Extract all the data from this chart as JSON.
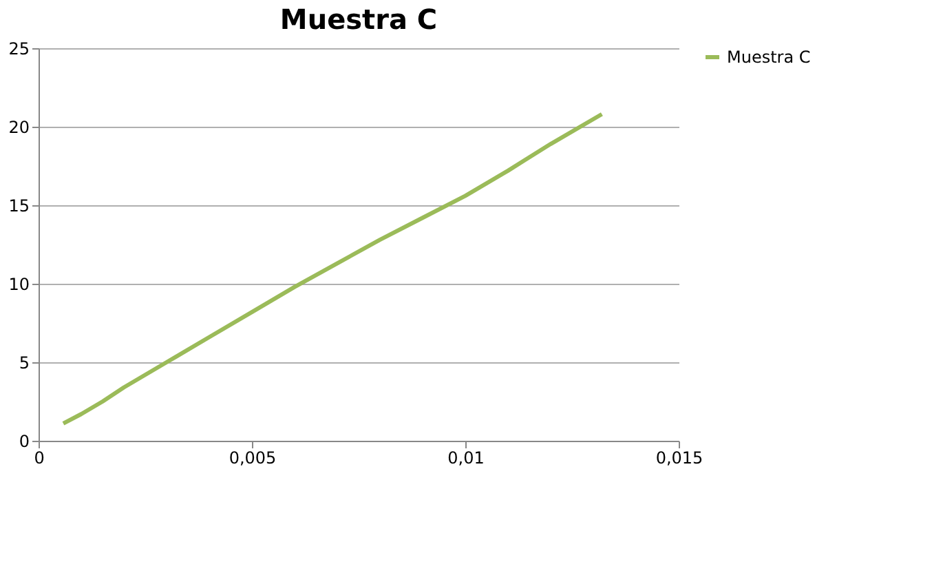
{
  "chart_data": {
    "type": "line",
    "title": "Muestra C",
    "x": [
      0.00058,
      0.001,
      0.0015,
      0.002,
      0.0025,
      0.003,
      0.004,
      0.005,
      0.006,
      0.007,
      0.008,
      0.009,
      0.01,
      0.011,
      0.012,
      0.0132
    ],
    "series": [
      {
        "name": "Muestra C",
        "color": "#9bbb59",
        "values": [
          1.1,
          1.7,
          2.5,
          3.4,
          4.2,
          5.0,
          6.6,
          8.2,
          9.8,
          11.3,
          12.8,
          14.2,
          15.6,
          17.2,
          18.9,
          20.8
        ]
      }
    ],
    "xlim": [
      0,
      0.015
    ],
    "xticks": [
      {
        "value": 0,
        "label": "0"
      },
      {
        "value": 0.005,
        "label": "0,005"
      },
      {
        "value": 0.01,
        "label": "0,01"
      },
      {
        "value": 0.015,
        "label": "0,015"
      }
    ],
    "ylim": [
      0,
      25
    ],
    "yticks": [
      0,
      5,
      10,
      15,
      20,
      25
    ],
    "grid": "y",
    "legend": "right",
    "marker": "none",
    "line_style": "solid"
  }
}
